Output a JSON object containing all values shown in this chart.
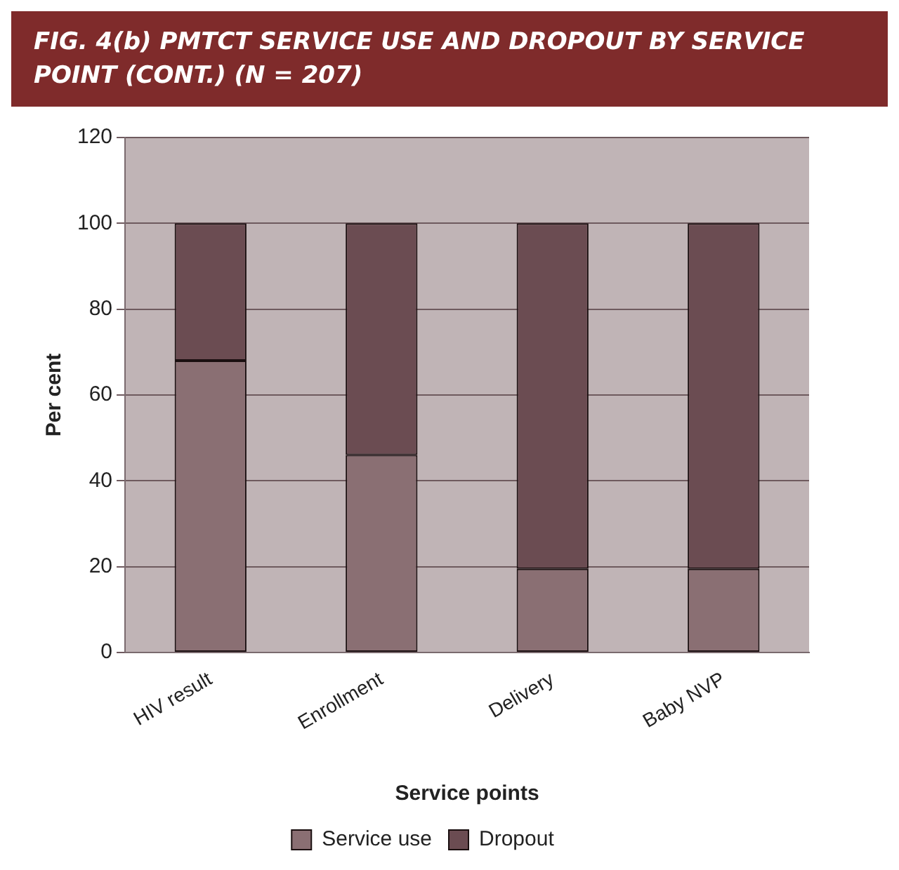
{
  "chart_data": {
    "type": "bar",
    "title": "FIG. 4(b) PMTCT SERVICE USE AND DROPOUT BY SERVICE POINT (CONT.) (N = 207)",
    "xlabel": "Service points",
    "ylabel": "Per cent",
    "categories": [
      "HIV result",
      "Enrollment",
      "Delivery",
      "Baby NVP"
    ],
    "series": [
      {
        "name": "Service use",
        "color": "#8a6f73",
        "values": [
          68,
          46,
          19.5,
          19.5
        ]
      },
      {
        "name": "Dropout",
        "color": "#6b4c52",
        "values": [
          32,
          54,
          80.5,
          80.5
        ]
      }
    ],
    "stacked": true,
    "ylim": [
      0,
      120
    ],
    "yticks": [
      0,
      20,
      40,
      60,
      80,
      100,
      120
    ],
    "grid": "y",
    "legend": "bottom"
  }
}
